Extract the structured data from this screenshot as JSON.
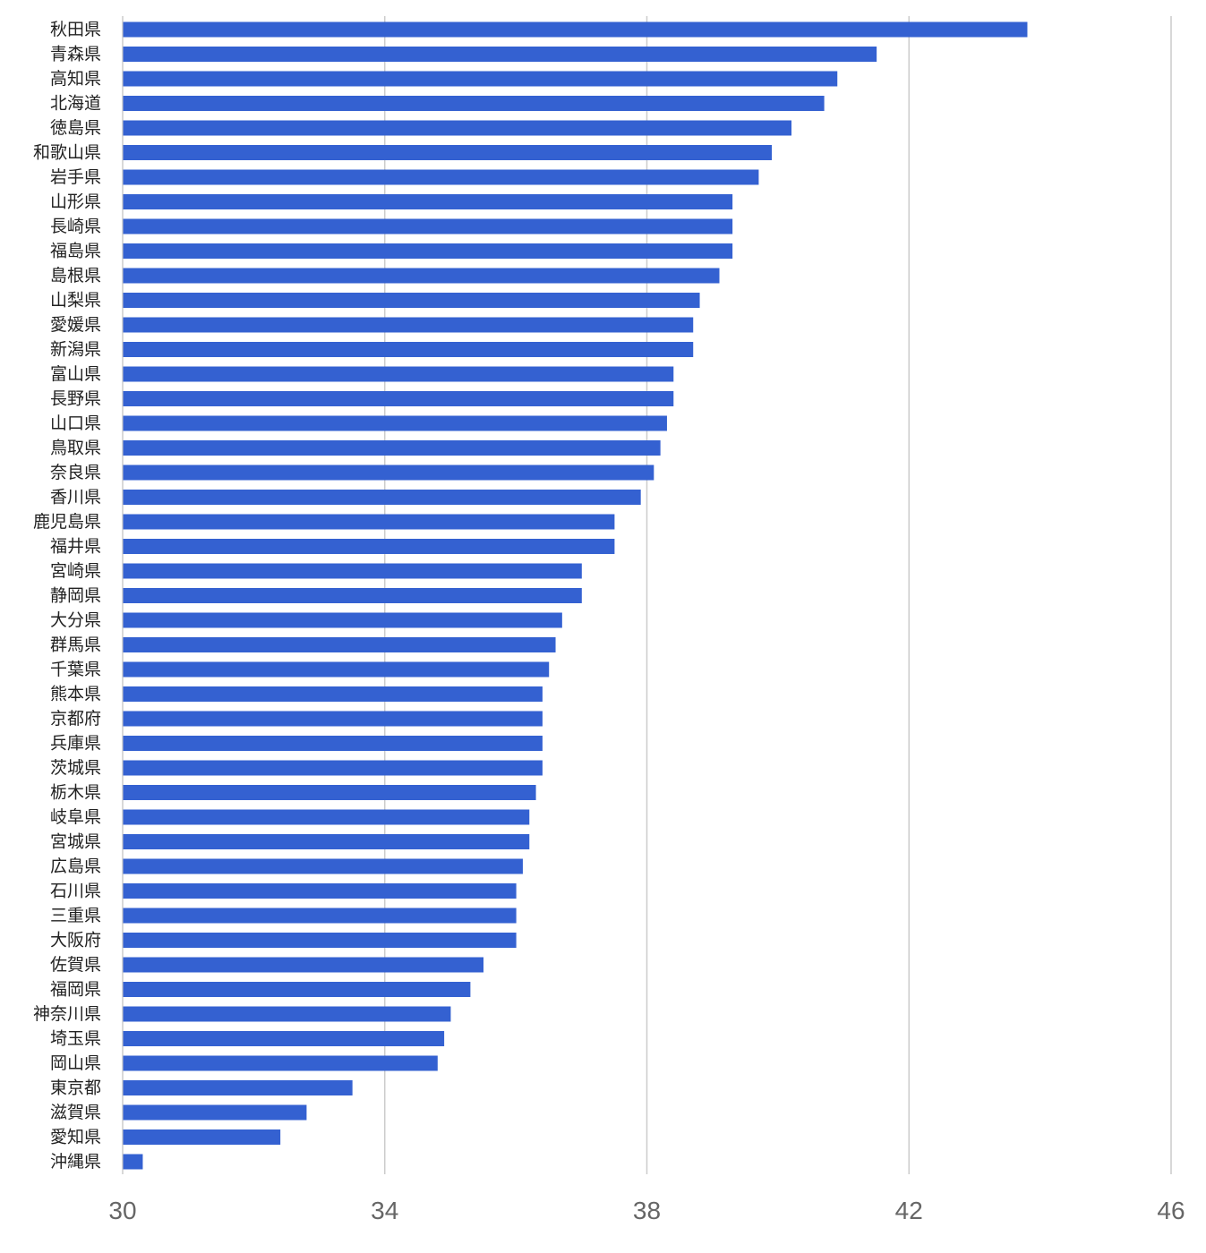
{
  "chart_data": {
    "type": "bar",
    "orientation": "horizontal",
    "title": "",
    "xlabel": "",
    "ylabel": "",
    "xlim": [
      30,
      46
    ],
    "xticks": [
      30,
      34,
      38,
      42,
      46
    ],
    "grid": true,
    "bar_color": "#3461d1",
    "categories": [
      "秋田県",
      "青森県",
      "高知県",
      "北海道",
      "徳島県",
      "和歌山県",
      "岩手県",
      "山形県",
      "長崎県",
      "福島県",
      "島根県",
      "山梨県",
      "愛媛県",
      "新潟県",
      "富山県",
      "長野県",
      "山口県",
      "鳥取県",
      "奈良県",
      "香川県",
      "鹿児島県",
      "福井県",
      "宮崎県",
      "静岡県",
      "大分県",
      "群馬県",
      "千葉県",
      "熊本県",
      "京都府",
      "兵庫県",
      "茨城県",
      "栃木県",
      "岐阜県",
      "宮城県",
      "広島県",
      "石川県",
      "三重県",
      "大阪府",
      "佐賀県",
      "福岡県",
      "神奈川県",
      "埼玉県",
      "岡山県",
      "東京都",
      "滋賀県",
      "愛知県",
      "沖縄県"
    ],
    "values": [
      43.8,
      41.5,
      40.9,
      40.7,
      40.2,
      39.9,
      39.7,
      39.3,
      39.3,
      39.3,
      39.1,
      38.8,
      38.7,
      38.7,
      38.4,
      38.4,
      38.3,
      38.2,
      38.1,
      37.9,
      37.5,
      37.5,
      37.0,
      37.0,
      36.7,
      36.6,
      36.5,
      36.4,
      36.4,
      36.4,
      36.4,
      36.3,
      36.2,
      36.2,
      36.1,
      36.0,
      36.0,
      36.0,
      35.5,
      35.3,
      35.0,
      34.9,
      34.8,
      33.5,
      32.8,
      32.4,
      30.3
    ]
  }
}
